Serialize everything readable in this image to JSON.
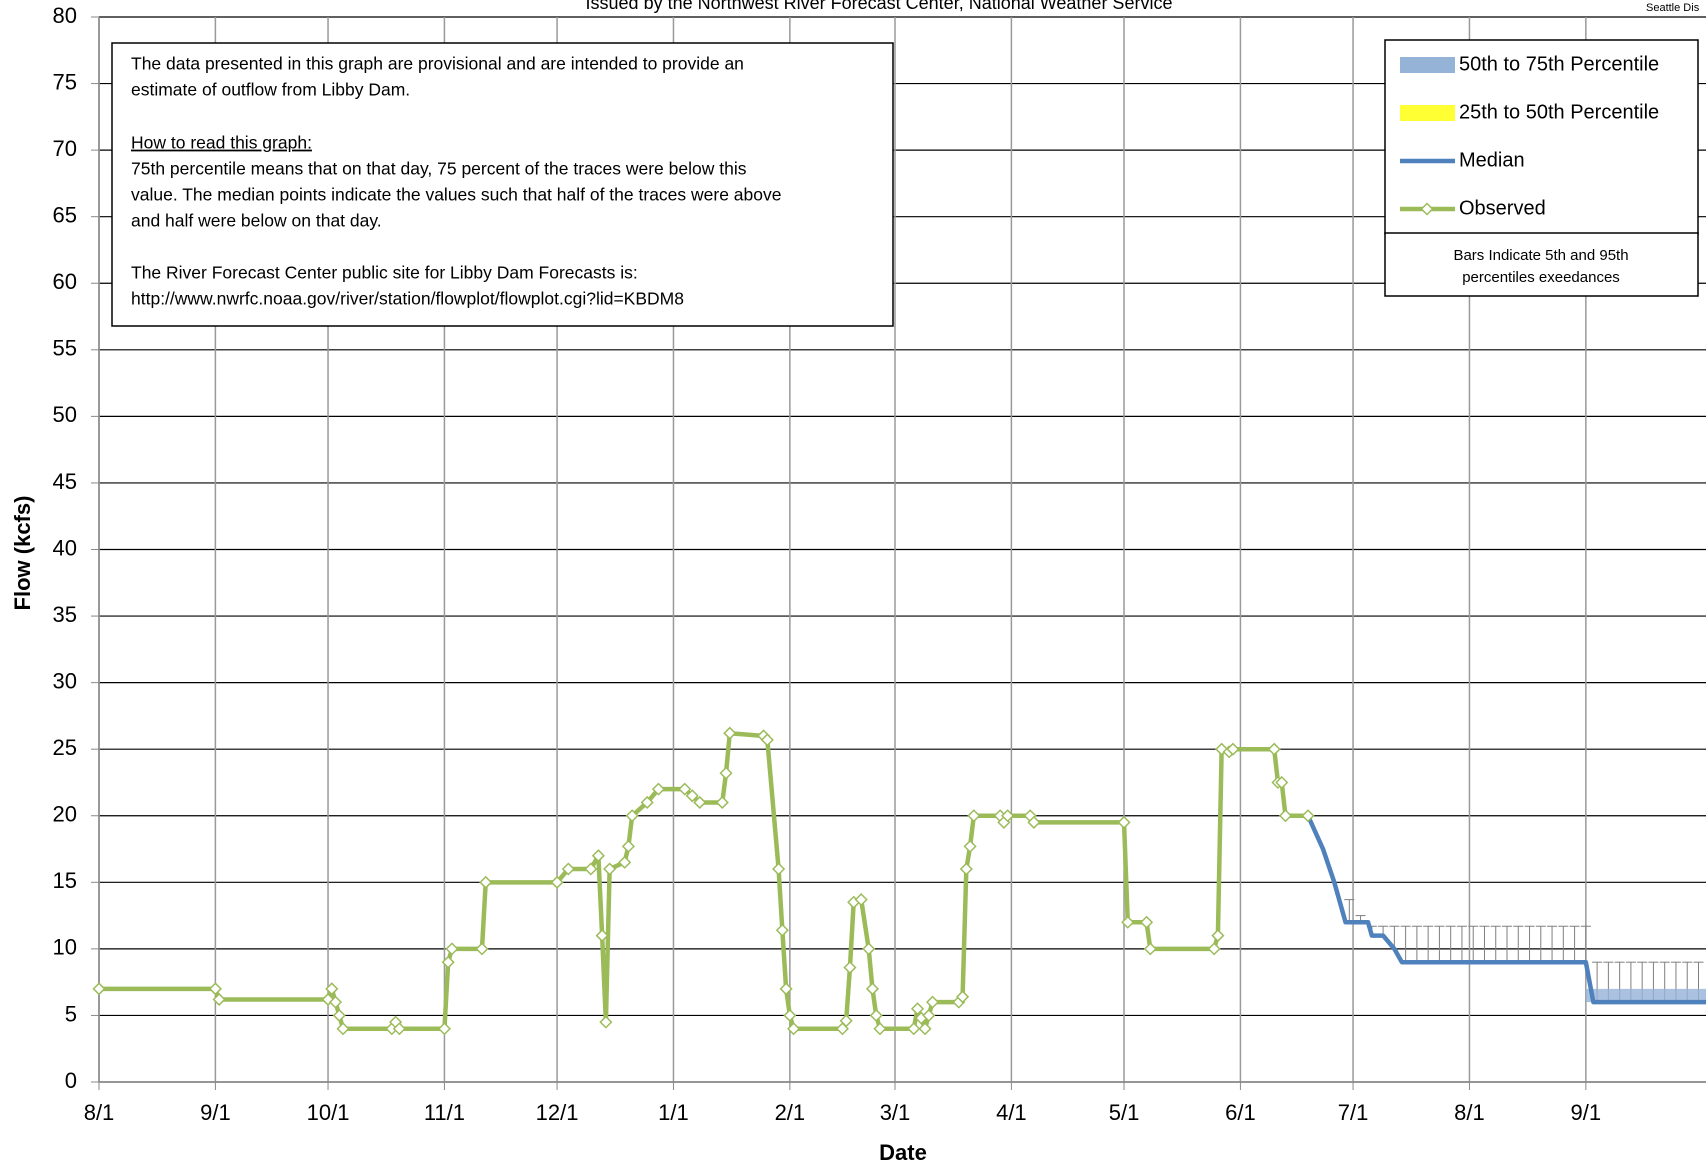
{
  "chart_data": {
    "type": "line",
    "title": "Issued by the Northwest River Forecast Center, National Weather Service",
    "corner_text": "Seattle Dis",
    "x_label": "Date",
    "y_label": "Flow (kcfs)",
    "xlim": [
      0,
      428
    ],
    "xticks": [
      {
        "value": 0,
        "label": "8/1"
      },
      {
        "value": 31,
        "label": "9/1"
      },
      {
        "value": 61,
        "label": "10/1"
      },
      {
        "value": 92,
        "label": "11/1"
      },
      {
        "value": 122,
        "label": "12/1"
      },
      {
        "value": 153,
        "label": "1/1"
      },
      {
        "value": 184,
        "label": "2/1"
      },
      {
        "value": 212,
        "label": "3/1"
      },
      {
        "value": 243,
        "label": "4/1"
      },
      {
        "value": 273,
        "label": "5/1"
      },
      {
        "value": 304,
        "label": "6/1"
      },
      {
        "value": 334,
        "label": "7/1"
      },
      {
        "value": 365,
        "label": "8/1"
      },
      {
        "value": 396,
        "label": "9/1"
      }
    ],
    "ylim": [
      0,
      80
    ],
    "yticks": [
      0,
      5,
      10,
      15,
      20,
      25,
      30,
      35,
      40,
      45,
      50,
      55,
      60,
      65,
      70,
      75,
      80
    ],
    "grid": true,
    "series": [
      {
        "name": "50th to 75th Percentile",
        "kind": "band",
        "color": "#95b3d7",
        "x": [
          396,
          428
        ],
        "low": [
          6,
          6
        ],
        "high": [
          7,
          7
        ]
      },
      {
        "name": "25th to 50th Percentile",
        "kind": "band",
        "color": "#ffff33"
      },
      {
        "name": "Median",
        "kind": "line",
        "color": "#4f81bd",
        "x": [
          322,
          326,
          329,
          332,
          338,
          339,
          342,
          345,
          347,
          396,
          398,
          428
        ],
        "values": [
          20,
          17.5,
          15,
          12,
          12,
          11,
          11,
          10,
          9,
          9,
          6,
          6
        ]
      },
      {
        "name": "Observed",
        "kind": "marker-line",
        "color": "#9bbb59",
        "x": [
          0,
          31,
          32,
          61,
          62,
          63,
          64,
          65,
          78,
          79,
          80,
          92,
          93,
          94,
          102,
          103,
          122,
          125,
          131,
          133,
          134,
          135,
          136,
          140,
          141,
          142,
          146,
          149,
          156,
          158,
          160,
          166,
          167,
          168,
          177,
          178,
          181,
          182,
          183,
          184,
          185,
          198,
          199,
          200,
          201,
          203,
          205,
          206,
          207,
          208,
          217,
          218,
          219,
          220,
          221,
          222,
          229,
          230,
          231,
          232,
          233,
          240,
          241,
          242,
          248,
          249,
          273,
          274,
          279,
          280,
          297,
          298,
          299,
          301,
          302,
          313,
          314,
          315,
          316,
          322
        ],
        "values": [
          7,
          7,
          6.2,
          6.2,
          7,
          6,
          5,
          4,
          4,
          4.5,
          4,
          4,
          9,
          10,
          10,
          15,
          15,
          16,
          16,
          17,
          11,
          4.5,
          16,
          16.5,
          17.7,
          20,
          21,
          22,
          22,
          21.5,
          21,
          21,
          23.2,
          26.2,
          26,
          25.7,
          16,
          11.4,
          7,
          5,
          4,
          4,
          4.6,
          8.6,
          13.5,
          13.7,
          10,
          7,
          5,
          4,
          4,
          5.5,
          4.8,
          4,
          5,
          6,
          6,
          6.4,
          16,
          17.7,
          20,
          20,
          19.5,
          20,
          20,
          19.5,
          19.5,
          12,
          12,
          10,
          10,
          11,
          25,
          24.8,
          25,
          25,
          22.5,
          22.5,
          20,
          20
        ]
      }
    ],
    "error_bars": {
      "color": "#7f7f7f",
      "x": [
        333,
        336,
        339,
        342,
        345,
        348,
        351,
        354,
        357,
        360,
        363,
        366,
        369,
        372,
        375,
        378,
        381,
        384,
        387,
        390,
        393,
        396,
        399,
        402,
        405,
        408,
        411,
        414,
        417,
        420,
        423,
        426
      ],
      "low": [
        12,
        12,
        11,
        11,
        10,
        9,
        9,
        9,
        9,
        9,
        9,
        9,
        9,
        9,
        9,
        9,
        9,
        9,
        9,
        9,
        9,
        9,
        6,
        6,
        6,
        6,
        6,
        6,
        6,
        6,
        6,
        6
      ],
      "high": [
        13.7,
        12.5,
        11.7,
        11.7,
        11.7,
        11.7,
        11.7,
        11.7,
        11.7,
        11.7,
        11.7,
        11.7,
        11.7,
        11.7,
        11.7,
        11.7,
        11.7,
        11.7,
        11.7,
        11.7,
        11.7,
        11.7,
        9,
        9,
        9,
        9,
        9,
        9,
        9,
        9,
        9,
        9
      ]
    },
    "legend_note": [
      "Bars Indicate 5th and 95th",
      "percentiles exeedances"
    ],
    "note_box": {
      "lines": [
        "The data presented in this graph are provisional and are intended to provide an",
        "estimate of outflow from Libby Dam.",
        "How to read this graph:",
        "75th percentile means that on that day, 75 percent of the traces were below this",
        "value.  The median points indicate the values such that half of  the traces were above",
        "and half were below on that day.",
        "The River Forecast Center public site for Libby Dam Forecasts is:",
        "http://www.nwrfc.noaa.gov/river/station/flowplot/flowplot.cgi?lid=KBDM8"
      ]
    }
  }
}
